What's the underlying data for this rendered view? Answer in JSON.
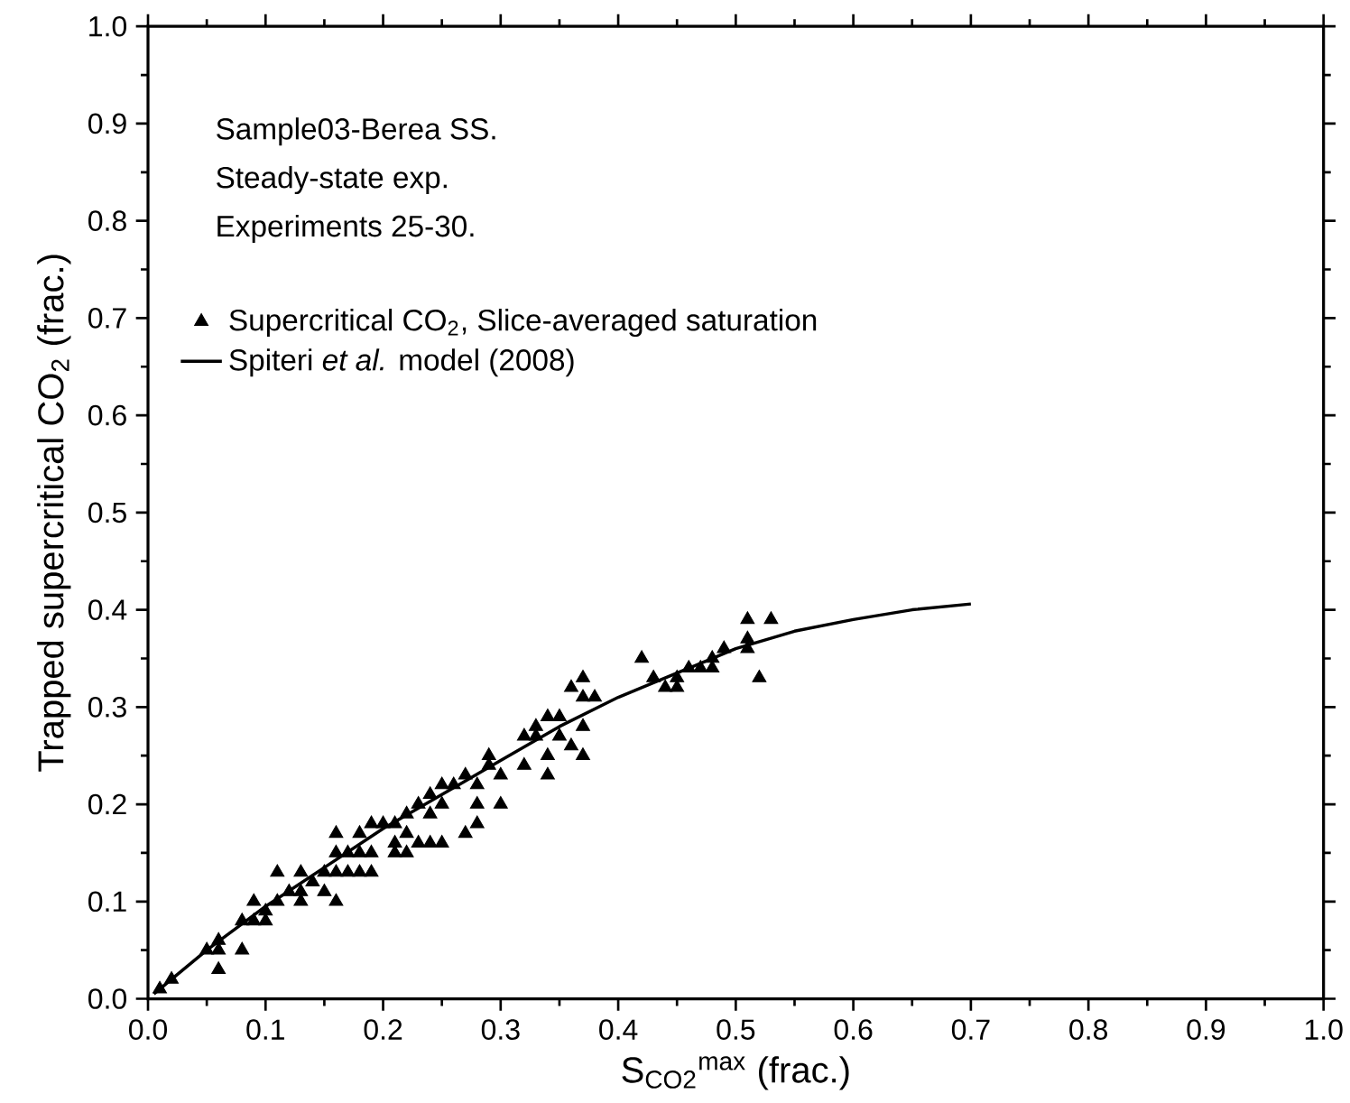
{
  "chart_data": {
    "type": "scatter",
    "xlabel": "S$_{CO2}$$^{max}$ (frac.)",
    "ylabel": "Trapped supercritical CO$_{2}$ (frac.)",
    "annotations": [
      "Sample03-Berea SS.",
      "Steady-state exp.",
      "Experiments 25-30."
    ],
    "xlim": [
      0,
      1
    ],
    "ylim": [
      0,
      1
    ],
    "xticks": [
      {
        "value": 0,
        "label": "0.0"
      },
      0.1,
      0.2,
      0.3,
      0.4,
      0.5,
      0.6,
      0.7,
      0.8,
      0.9,
      {
        "value": 1,
        "label": "1.0"
      }
    ],
    "yticks": [
      {
        "value": 0,
        "label": "0.0"
      },
      0.1,
      0.2,
      0.3,
      0.4,
      0.5,
      0.6,
      0.7,
      0.8,
      0.9,
      {
        "value": 1,
        "label": "1.0"
      }
    ],
    "legend": "top left",
    "grid": false,
    "series": [
      {
        "name": "Supercritical CO$_{2}$, Slice-averaged saturation",
        "marker": "triangle",
        "color": "#000000",
        "x": [
          0.01,
          0.02,
          0.05,
          0.06,
          0.06,
          0.06,
          0.08,
          0.08,
          0.09,
          0.09,
          0.1,
          0.1,
          0.11,
          0.11,
          0.12,
          0.13,
          0.13,
          0.13,
          0.14,
          0.15,
          0.15,
          0.16,
          0.16,
          0.16,
          0.16,
          0.17,
          0.17,
          0.18,
          0.18,
          0.18,
          0.19,
          0.19,
          0.19,
          0.2,
          0.21,
          0.21,
          0.21,
          0.22,
          0.22,
          0.22,
          0.23,
          0.23,
          0.24,
          0.24,
          0.24,
          0.25,
          0.25,
          0.25,
          0.26,
          0.27,
          0.27,
          0.28,
          0.28,
          0.28,
          0.29,
          0.29,
          0.3,
          0.3,
          0.32,
          0.32,
          0.33,
          0.33,
          0.34,
          0.34,
          0.34,
          0.35,
          0.35,
          0.36,
          0.36,
          0.37,
          0.37,
          0.37,
          0.37,
          0.38,
          0.42,
          0.43,
          0.44,
          0.45,
          0.45,
          0.46,
          0.47,
          0.48,
          0.48,
          0.49,
          0.51,
          0.51,
          0.51,
          0.52,
          0.53
        ],
        "values": [
          0.01,
          0.02,
          0.05,
          0.06,
          0.05,
          0.03,
          0.08,
          0.05,
          0.1,
          0.08,
          0.08,
          0.09,
          0.13,
          0.1,
          0.11,
          0.13,
          0.11,
          0.1,
          0.12,
          0.13,
          0.11,
          0.17,
          0.15,
          0.13,
          0.1,
          0.15,
          0.13,
          0.17,
          0.15,
          0.13,
          0.18,
          0.15,
          0.13,
          0.18,
          0.18,
          0.16,
          0.15,
          0.19,
          0.17,
          0.15,
          0.2,
          0.16,
          0.21,
          0.19,
          0.16,
          0.22,
          0.2,
          0.16,
          0.22,
          0.23,
          0.17,
          0.22,
          0.2,
          0.18,
          0.25,
          0.24,
          0.23,
          0.2,
          0.27,
          0.24,
          0.28,
          0.27,
          0.29,
          0.25,
          0.23,
          0.29,
          0.27,
          0.32,
          0.26,
          0.33,
          0.31,
          0.28,
          0.25,
          0.31,
          0.35,
          0.33,
          0.32,
          0.33,
          0.32,
          0.34,
          0.34,
          0.35,
          0.34,
          0.36,
          0.39,
          0.37,
          0.36,
          0.33,
          0.39
        ]
      },
      {
        "name": "Spiteri *et al.* model (2008)",
        "type": "line",
        "line_style": "solid",
        "color": "#000000",
        "x": [
          0.005,
          0.05,
          0.1,
          0.15,
          0.2,
          0.25,
          0.3,
          0.35,
          0.4,
          0.45,
          0.5,
          0.55,
          0.6,
          0.65,
          0.7
        ],
        "values": [
          0.005,
          0.05,
          0.095,
          0.135,
          0.175,
          0.21,
          0.245,
          0.28,
          0.31,
          0.335,
          0.36,
          0.378,
          0.39,
          0.4,
          0.406
        ]
      }
    ]
  }
}
